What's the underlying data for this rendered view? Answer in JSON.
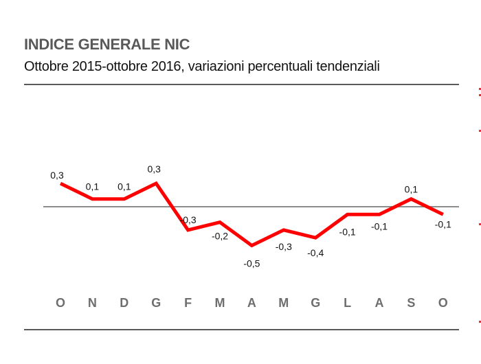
{
  "chart_data": {
    "type": "line",
    "title": "INDICE GENERALE NIC",
    "subtitle": "Ottobre 2015-ottobre 2016, variazioni percentuali tendenziali",
    "categories": [
      "O",
      "N",
      "D",
      "G",
      "F",
      "M",
      "A",
      "M",
      "G",
      "L",
      "A",
      "S",
      "O"
    ],
    "values": [
      0.3,
      0.1,
      0.1,
      0.3,
      -0.3,
      -0.2,
      -0.5,
      -0.3,
      -0.4,
      -0.1,
      -0.1,
      0.1,
      -0.1
    ],
    "data_labels": [
      "0,3",
      "0,1",
      "0,1",
      "0,3",
      "-0,3",
      "-0,2",
      "-0,5",
      "-0,3",
      "-0,4",
      "-0,1",
      "-0,1",
      "0,1",
      "-0,1"
    ],
    "xlabel": "",
    "ylabel": "",
    "grid": false,
    "zero_line": true,
    "colors": {
      "series": "#ff0000",
      "zero_line": "#8c8c8c",
      "title": "#595959",
      "axis_labels": "#6e6e6e"
    }
  }
}
